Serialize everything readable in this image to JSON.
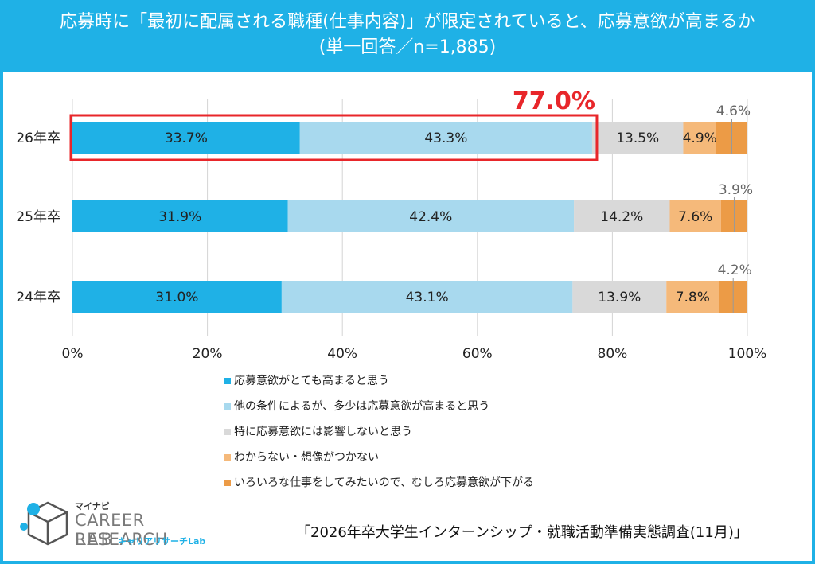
{
  "header": {
    "title_line1": "応募時に「最初に配属される職種(仕事内容)」が限定されていると、応募意欲が高まるか",
    "title_line2": "(単一回答／n=1,885)"
  },
  "chart_data": {
    "type": "bar",
    "orientation": "horizontal",
    "stacked": true,
    "categories": [
      "26年卒",
      "25年卒",
      "24年卒"
    ],
    "series": [
      {
        "name": "応募意欲がとても高まると思う",
        "values": [
          33.7,
          31.9,
          31.0
        ],
        "labels": [
          "33.7%",
          "31.9%",
          "31.0%"
        ],
        "color": "#1fb1e6"
      },
      {
        "name": "他の条件によるが、多少は応募意欲が高まると思う",
        "values": [
          43.3,
          42.4,
          43.1
        ],
        "labels": [
          "43.3%",
          "42.4%",
          "43.1%"
        ],
        "color": "#a8d9ee"
      },
      {
        "name": "特に応募意欲には影響しないと思う",
        "values": [
          13.5,
          14.2,
          13.9
        ],
        "labels": [
          "13.5%",
          "14.2%",
          "13.9%"
        ],
        "color": "#d9d9d9"
      },
      {
        "name": "わからない・想像がつかない",
        "values": [
          4.9,
          7.6,
          7.8
        ],
        "labels": [
          "4.9%",
          "7.6%",
          "7.8%"
        ],
        "color": "#f5b97a"
      },
      {
        "name": "いろいろな仕事をしてみたいので、むしろ応募意欲が下がる",
        "values": [
          4.6,
          3.9,
          4.2
        ],
        "labels": [
          "4.6%",
          "3.9%",
          "4.2%"
        ],
        "color": "#ec9b46"
      }
    ],
    "xlim": [
      0,
      100
    ],
    "x_ticks": [
      "0%",
      "20%",
      "40%",
      "60%",
      "80%",
      "100%"
    ],
    "grid": true,
    "legend_position": "bottom",
    "annotation": {
      "text": "77.0%",
      "color": "#e8262a",
      "category": "26年卒",
      "spans_series": [
        0,
        1
      ]
    }
  },
  "brand": {
    "top": "マイナビ",
    "name": "CAREER RESEARCH",
    "lab": "LAB",
    "sub": "キャリアリサーチLab"
  },
  "source": "「2026年卒大学生インターンシップ・就職活動準備実態調査(11月)」"
}
